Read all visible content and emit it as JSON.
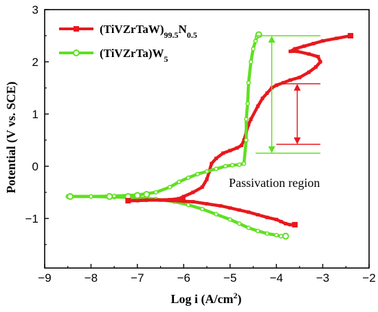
{
  "chart_data": {
    "type": "line",
    "xlabel_main": "Log i (A/cm",
    "xlabel_sup": "2",
    "xlabel_tail": ")",
    "ylabel": "Potential (V vs. SCE)",
    "xlim": [
      -9,
      -2
    ],
    "ylim": [
      -1.95,
      3
    ],
    "x_ticks": [
      -9,
      -8,
      -7,
      -6,
      -5,
      -4,
      -3,
      -2
    ],
    "y_ticks": [
      -1,
      0,
      1,
      2,
      3
    ],
    "x_tick_labels": [
      "−9",
      "−8",
      "−7",
      "−6",
      "−5",
      "−4",
      "−3",
      "−2"
    ],
    "y_tick_labels": [
      "−1",
      "0",
      "1",
      "2",
      "3"
    ],
    "annotation": "Passivation region",
    "legend_position": "top-left",
    "series": [
      {
        "name": "(TiVZrTaW)99.5N0.5",
        "legend_base": "(TiVZrTaW)",
        "legend_sub1": "99.5",
        "legend_mid": "N",
        "legend_sub2": "0.5",
        "color": "#e8181e",
        "marker": "square",
        "x": [
          -7.2,
          -6.8,
          -6.3,
          -6.1,
          -6.0,
          -6.1,
          -6.0,
          -5.8,
          -5.6,
          -5.5,
          -5.45,
          -5.4,
          -5.3,
          -5.15,
          -5.0,
          -4.85,
          -4.75,
          -4.7,
          -4.65,
          -4.6,
          -4.55,
          -4.4,
          -4.3,
          -4.2,
          -4.1,
          -4.0,
          -3.85,
          -3.7,
          -3.5,
          -3.3,
          -3.15,
          -3.05,
          -3.1,
          -3.3,
          -3.55,
          -3.7,
          -3.6,
          -3.4,
          -3.2,
          -3.0,
          -2.7,
          -2.4
        ],
        "y": [
          -0.66,
          -0.65,
          -0.64,
          -0.62,
          -0.62,
          -0.62,
          -0.58,
          -0.5,
          -0.4,
          -0.25,
          -0.1,
          0.05,
          0.15,
          0.25,
          0.3,
          0.35,
          0.4,
          0.5,
          0.65,
          0.8,
          0.9,
          1.15,
          1.3,
          1.4,
          1.5,
          1.55,
          1.6,
          1.65,
          1.7,
          1.8,
          1.9,
          2.0,
          2.1,
          2.15,
          2.2,
          2.2,
          2.25,
          2.3,
          2.35,
          2.4,
          2.45,
          2.5
        ]
      },
      {
        "name": "(TiVZrTa)W5",
        "legend_base": "(TiVZrTa)W",
        "legend_sub1": "5",
        "color": "#5fe020",
        "marker": "circle",
        "x": [
          -8.5,
          -8.0,
          -7.5,
          -7.0,
          -6.6,
          -6.3,
          -6.1,
          -5.9,
          -5.7,
          -5.5,
          -5.3,
          -5.1,
          -4.95,
          -4.8,
          -4.7,
          -4.65,
          -4.65,
          -4.62,
          -4.6,
          -4.55,
          -4.5,
          -4.45,
          -4.42,
          -4.4
        ],
        "y": [
          -0.58,
          -0.58,
          -0.57,
          -0.55,
          -0.5,
          -0.4,
          -0.3,
          -0.22,
          -0.15,
          -0.1,
          -0.05,
          0.0,
          0.02,
          0.03,
          0.05,
          0.5,
          0.9,
          1.2,
          1.6,
          2.0,
          2.25,
          2.4,
          2.48,
          2.52
        ]
      },
      {
        "name": "(TiVZrTaW)99.5N0.5 cathodic",
        "color": "#e8181e",
        "marker": "square",
        "x": [
          -7.2,
          -7.0,
          -6.8,
          -6.5,
          -6.2,
          -6.0,
          -5.8,
          -5.5,
          -5.2,
          -5.0,
          -4.8,
          -4.6,
          -4.4,
          -4.2,
          -4.0,
          -3.9,
          -3.8,
          -3.7,
          -3.6
        ],
        "y": [
          -0.66,
          -0.66,
          -0.65,
          -0.65,
          -0.66,
          -0.67,
          -0.68,
          -0.72,
          -0.76,
          -0.8,
          -0.84,
          -0.88,
          -0.93,
          -0.98,
          -1.02,
          -1.06,
          -1.1,
          -1.12,
          -1.12
        ]
      },
      {
        "name": "(TiVZrTa)W5 cathodic",
        "color": "#5fe020",
        "marker": "circle",
        "x": [
          -8.5,
          -8.0,
          -7.5,
          -7.0,
          -6.6,
          -6.2,
          -5.9,
          -5.6,
          -5.3,
          -5.0,
          -4.8,
          -4.6,
          -4.4,
          -4.2,
          -4.0,
          -3.9,
          -3.8
        ],
        "y": [
          -0.58,
          -0.58,
          -0.59,
          -0.6,
          -0.63,
          -0.68,
          -0.74,
          -0.82,
          -0.92,
          -1.02,
          -1.1,
          -1.18,
          -1.24,
          -1.29,
          -1.32,
          -1.34,
          -1.34
        ]
      }
    ],
    "markers_shown": [
      {
        "name": "(TiVZrTa)W5",
        "color": "#5fe020",
        "marker": "circle",
        "points": [
          [
            -8.45,
            -0.58
          ],
          [
            -7.6,
            -0.58
          ],
          [
            -7.2,
            -0.58
          ],
          [
            -7.0,
            -0.56
          ],
          [
            -6.8,
            -0.54
          ],
          [
            -4.38,
            2.52
          ],
          [
            -3.8,
            -1.34
          ]
        ]
      },
      {
        "name": "(TiVZrTaW)99.5N0.5",
        "color": "#e8181e",
        "marker": "square",
        "points": [
          [
            -7.2,
            -0.66
          ],
          [
            -3.6,
            -1.12
          ],
          [
            -2.4,
            2.5
          ]
        ]
      }
    ],
    "arrows": [
      {
        "color": "#5fe020",
        "x": -4.1,
        "y1": 2.5,
        "y2": 0.25
      },
      {
        "color": "#e8181e",
        "x": -3.55,
        "y1": 1.58,
        "y2": 0.42
      }
    ],
    "bracket_lines": [
      {
        "color": "#5fe020",
        "x1": -4.45,
        "x2": -3.05,
        "y": 2.5
      },
      {
        "color": "#5fe020",
        "x1": -4.45,
        "x2": -3.05,
        "y": 0.25
      },
      {
        "color": "#e8181e",
        "x1": -4.0,
        "x2": -3.05,
        "y": 1.58
      },
      {
        "color": "#e8181e",
        "x1": -4.0,
        "x2": -3.05,
        "y": 0.42
      }
    ]
  }
}
